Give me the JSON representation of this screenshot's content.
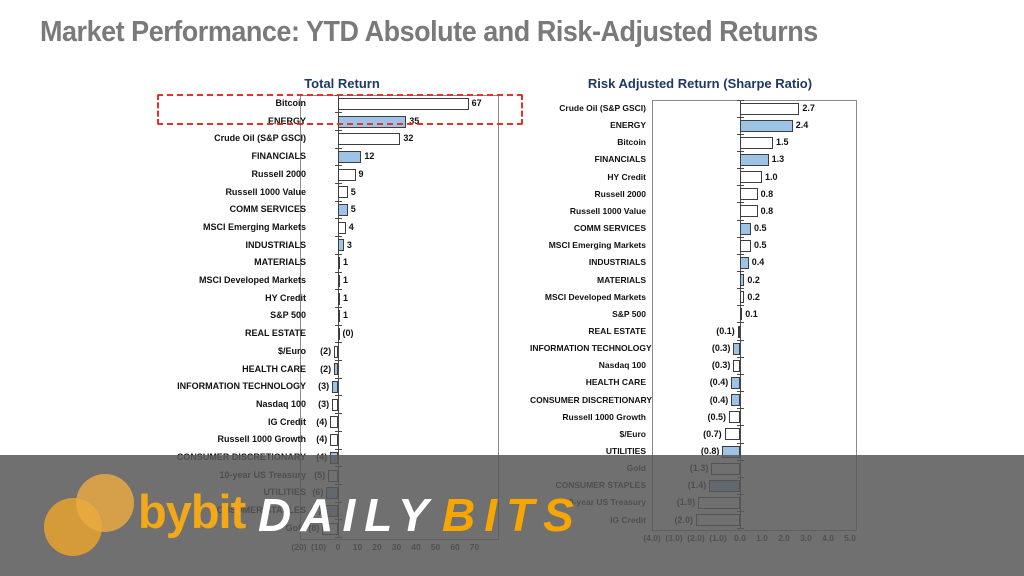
{
  "page_title": "Market Performance: YTD Absolute and Risk-Adjusted Returns",
  "banner": {
    "brand": "bybit",
    "word1": "DAILY",
    "word2": "BITS"
  },
  "colors": {
    "title_gray": "#7A7A7A",
    "chart_title_navy": "#1F3864",
    "bar_blue": "#9DC3E6",
    "bar_white": "#FFFFFF",
    "bar_border": "#3D3D3D",
    "highlight_red": "#E5312B",
    "banner_gray": "#585858",
    "accent_orange": "#F7A600"
  },
  "chart_data": [
    {
      "type": "bar",
      "orientation": "horizontal",
      "title": "Total Return",
      "xlim": [
        -20,
        77
      ],
      "grid": false,
      "x_tick_values": [
        -20,
        -10,
        0,
        10,
        20,
        30,
        40,
        50,
        60,
        70
      ],
      "x_tick_labels": [
        "(20)",
        "(10)",
        "0",
        "10",
        "20",
        "30",
        "40",
        "50",
        "60",
        "70"
      ],
      "highlight_category": "Bitcoin",
      "categories": [
        "Bitcoin",
        "ENERGY",
        "Crude Oil (S&P GSCI)",
        "FINANCIALS",
        "Russell 2000",
        "Russell 1000 Value",
        "COMM SERVICES",
        "MSCI Emerging Markets",
        "INDUSTRIALS",
        "MATERIALS",
        "MSCI Developed Markets",
        "HY Credit",
        "S&P 500",
        "REAL ESTATE",
        "$/Euro",
        "HEALTH CARE",
        "INFORMATION TECHNOLOGY",
        "Nasdaq 100",
        "IG Credit",
        "Russell 1000 Growth",
        "CONSUMER DISCRETIONARY",
        "10-year US Treasury",
        "UTILITIES",
        "CONSUMER STAPLES",
        "Gold"
      ],
      "values": [
        67,
        35,
        32,
        12,
        9,
        5,
        5,
        4,
        3,
        1,
        1,
        1,
        1,
        0,
        -2,
        -2,
        -3,
        -3,
        -4,
        -4,
        -4,
        -5,
        -6,
        -7,
        -8
      ],
      "value_labels": [
        "67",
        "35",
        "32",
        "12",
        "9",
        "5",
        "5",
        "4",
        "3",
        "1",
        "1",
        "1",
        "1",
        "(0)",
        "(2)",
        "(2)",
        "(3)",
        "(3)",
        "(4)",
        "(4)",
        "(4)",
        "(5)",
        "(6)",
        "(7)",
        "(8)"
      ],
      "bar_colors": [
        "white",
        "blue",
        "white",
        "blue",
        "white",
        "white",
        "blue",
        "white",
        "blue",
        "blue",
        "white",
        "white",
        "white",
        "blue",
        "white",
        "blue",
        "blue",
        "white",
        "white",
        "white",
        "blue",
        "white",
        "blue",
        "blue",
        "white"
      ]
    },
    {
      "type": "bar",
      "orientation": "horizontal",
      "title": "Risk Adjusted Return (Sharpe Ratio)",
      "xlim": [
        -4,
        5.2
      ],
      "grid": false,
      "x_tick_values": [
        -4,
        -3,
        -2,
        -1,
        0,
        1,
        2,
        3,
        4,
        5
      ],
      "x_tick_labels": [
        "(4.0)",
        "(3.0)",
        "(2.0)",
        "(1.0)",
        "0.0",
        "1.0",
        "2.0",
        "3.0",
        "4.0",
        "5.0"
      ],
      "highlight_category": "",
      "categories": [
        "Crude Oil (S&P GSCI)",
        "ENERGY",
        "Bitcoin",
        "FINANCIALS",
        "HY Credit",
        "Russell 2000",
        "Russell 1000 Value",
        "COMM SERVICES",
        "MSCI Emerging Markets",
        "INDUSTRIALS",
        "MATERIALS",
        "MSCI Developed Markets",
        "S&P 500",
        "REAL ESTATE",
        "INFORMATION TECHNOLOGY",
        "Nasdaq 100",
        "HEALTH CARE",
        "CONSUMER DISCRETIONARY",
        "Russell 1000 Growth",
        "$/Euro",
        "UTILITIES",
        "Gold",
        "CONSUMER STAPLES",
        "10-year US Treasury",
        "IG Credit"
      ],
      "values": [
        2.7,
        2.4,
        1.5,
        1.3,
        1.0,
        0.8,
        0.8,
        0.5,
        0.5,
        0.4,
        0.2,
        0.2,
        0.1,
        -0.1,
        -0.3,
        -0.3,
        -0.4,
        -0.4,
        -0.5,
        -0.7,
        -0.8,
        -1.3,
        -1.4,
        -1.9,
        -2.0
      ],
      "value_labels": [
        "2.7",
        "2.4",
        "1.5",
        "1.3",
        "1.0",
        "0.8",
        "0.8",
        "0.5",
        "0.5",
        "0.4",
        "0.2",
        "0.2",
        "0.1",
        "(0.1)",
        "(0.3)",
        "(0.3)",
        "(0.4)",
        "(0.4)",
        "(0.5)",
        "(0.7)",
        "(0.8)",
        "(1.3)",
        "(1.4)",
        "(1.9)",
        "(2.0)"
      ],
      "bar_colors": [
        "white",
        "blue",
        "white",
        "blue",
        "white",
        "white",
        "white",
        "blue",
        "white",
        "blue",
        "blue",
        "white",
        "white",
        "blue",
        "blue",
        "white",
        "blue",
        "blue",
        "white",
        "white",
        "blue",
        "white",
        "blue",
        "white",
        "white"
      ]
    }
  ]
}
